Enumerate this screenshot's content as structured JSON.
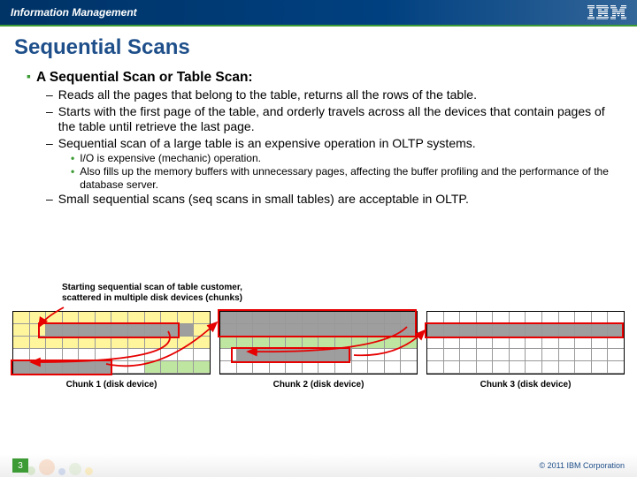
{
  "header": {
    "brand": "Information Management",
    "logo_text": "IBM"
  },
  "title": "Sequential Scans",
  "content": {
    "main_bullet": "A Sequential Scan or Table Scan:",
    "sub1": [
      "Reads all the pages that belong to the table, returns all the rows of the table.",
      "Starts with the first page of the table, and orderly travels across all the devices that contain pages of the table until retrieve the last page.",
      "Sequential scan of a large table is an expensive operation in OLTP systems."
    ],
    "sub2": [
      "I/O is expensive (mechanic) operation.",
      "Also fills up the memory buffers with unnecessary pages, affecting the buffer profiling and the performance of the database server."
    ],
    "sub1_after": [
      "Small sequential scans (seq scans in small tables) are acceptable in OLTP."
    ]
  },
  "diagram": {
    "caption_line1": "Starting sequential scan of table customer,",
    "caption_line2": "scattered in multiple disk devices (chunks)",
    "chunks": [
      {
        "label": "Chunk 1 (disk device)"
      },
      {
        "label": "Chunk 2 (disk device)"
      },
      {
        "label": "Chunk 3 (disk device)"
      }
    ],
    "colors": {
      "yellow": "#fff59d",
      "gray": "#9e9e9e",
      "green": "#bfe6a1",
      "white": "#ffffff",
      "red_border": "#e60000",
      "arrow": "#e60000"
    },
    "chunk1_rows": [
      [
        "y",
        "y",
        "y",
        "y",
        "y",
        "y",
        "y",
        "y",
        "y",
        "y",
        "y",
        "y"
      ],
      [
        "y",
        "y",
        "g",
        "g",
        "g",
        "g",
        "g",
        "g",
        "g",
        "g",
        "g",
        "y"
      ],
      [
        "y",
        "y",
        "y",
        "y",
        "y",
        "y",
        "y",
        "y",
        "y",
        "y",
        "y",
        "y"
      ],
      [
        "w",
        "w",
        "w",
        "w",
        "w",
        "w",
        "w",
        "w",
        "w",
        "w",
        "w",
        "w"
      ],
      [
        "g",
        "g",
        "g",
        "g",
        "g",
        "g",
        "w",
        "w",
        "gr",
        "gr",
        "gr",
        "gr"
      ]
    ],
    "chunk2_rows": [
      [
        "g",
        "g",
        "g",
        "g",
        "g",
        "g",
        "g",
        "g",
        "g",
        "g",
        "g",
        "g"
      ],
      [
        "g",
        "g",
        "g",
        "g",
        "g",
        "g",
        "g",
        "g",
        "g",
        "g",
        "g",
        "g"
      ],
      [
        "gr",
        "gr",
        "gr",
        "gr",
        "gr",
        "gr",
        "gr",
        "gr",
        "gr",
        "gr",
        "gr",
        "gr"
      ],
      [
        "w",
        "g",
        "g",
        "g",
        "g",
        "g",
        "g",
        "g",
        "w",
        "w",
        "w",
        "w"
      ],
      [
        "w",
        "w",
        "w",
        "w",
        "w",
        "w",
        "w",
        "w",
        "w",
        "w",
        "w",
        "w"
      ]
    ],
    "chunk3_rows": [
      [
        "w",
        "w",
        "w",
        "w",
        "w",
        "w",
        "w",
        "w",
        "w",
        "w",
        "w",
        "w"
      ],
      [
        "g",
        "g",
        "g",
        "g",
        "g",
        "g",
        "g",
        "g",
        "g",
        "g",
        "g",
        "g"
      ],
      [
        "w",
        "w",
        "w",
        "w",
        "w",
        "w",
        "w",
        "w",
        "w",
        "w",
        "w",
        "w"
      ],
      [
        "w",
        "w",
        "w",
        "w",
        "w",
        "w",
        "w",
        "w",
        "w",
        "w",
        "w",
        "w"
      ],
      [
        "w",
        "w",
        "w",
        "w",
        "w",
        "w",
        "w",
        "w",
        "w",
        "w",
        "w",
        "w"
      ]
    ]
  },
  "footer": {
    "page": "3",
    "copyright": "© 2011 IBM Corporation"
  },
  "style": {
    "title_color": "#1e4f8a",
    "accent_green": "#3d9b35",
    "header_bg_start": "#003366",
    "header_bg_end": "#336699"
  }
}
